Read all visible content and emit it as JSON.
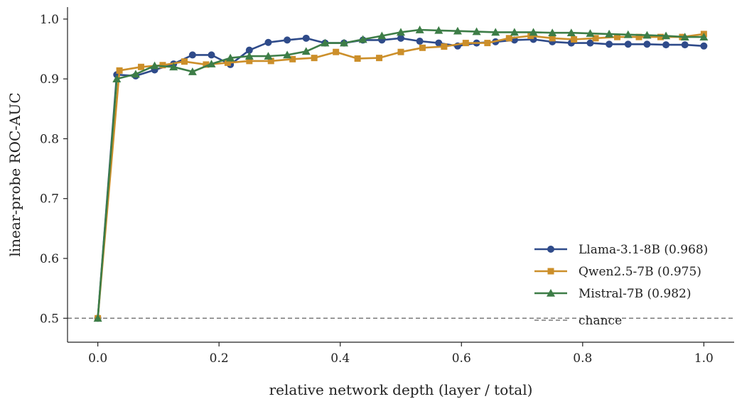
{
  "chart_data": {
    "type": "line",
    "title": "",
    "xlabel": "relative network depth (layer / total)",
    "ylabel": "linear-probe ROC-AUC",
    "xlim": [
      -0.05,
      1.05
    ],
    "ylim": [
      0.46,
      1.02
    ],
    "xticks": [
      0.0,
      0.2,
      0.4,
      0.6,
      0.8,
      1.0
    ],
    "xtick_labels": [
      "0.0",
      "0.2",
      "0.4",
      "0.6",
      "0.8",
      "1.0"
    ],
    "yticks": [
      0.5,
      0.6,
      0.7,
      0.8,
      0.9,
      1.0
    ],
    "ytick_labels": [
      "0.5",
      "0.6",
      "0.7",
      "0.8",
      "0.9",
      "1.0"
    ],
    "grid": false,
    "legend_position": "lower-right",
    "series": [
      {
        "name": "Llama-3.1-8B (0.968)",
        "color": "#2f4b8a",
        "marker": "circle",
        "x": [
          0.0,
          0.03125,
          0.0625,
          0.09375,
          0.125,
          0.15625,
          0.1875,
          0.21875,
          0.25,
          0.28125,
          0.3125,
          0.34375,
          0.375,
          0.40625,
          0.4375,
          0.46875,
          0.5,
          0.53125,
          0.5625,
          0.59375,
          0.625,
          0.65625,
          0.6875,
          0.71875,
          0.75,
          0.78125,
          0.8125,
          0.84375,
          0.875,
          0.90625,
          0.9375,
          0.96875,
          1.0
        ],
        "values": [
          0.5,
          0.907,
          0.905,
          0.915,
          0.925,
          0.94,
          0.94,
          0.924,
          0.948,
          0.961,
          0.965,
          0.968,
          0.96,
          0.96,
          0.965,
          0.965,
          0.968,
          0.963,
          0.96,
          0.955,
          0.96,
          0.962,
          0.965,
          0.966,
          0.962,
          0.96,
          0.96,
          0.958,
          0.958,
          0.958,
          0.957,
          0.957,
          0.955
        ]
      },
      {
        "name": "Qwen2.5-7B (0.975)",
        "color": "#cc8f2a",
        "marker": "square",
        "x": [
          0.0,
          0.0357,
          0.0714,
          0.1071,
          0.1429,
          0.1786,
          0.2143,
          0.25,
          0.2857,
          0.3214,
          0.3571,
          0.3929,
          0.4286,
          0.4643,
          0.5,
          0.5357,
          0.5714,
          0.6071,
          0.6429,
          0.6786,
          0.7143,
          0.75,
          0.7857,
          0.8214,
          0.8571,
          0.8929,
          0.9286,
          0.9643,
          1.0
        ],
        "values": [
          0.5,
          0.914,
          0.92,
          0.923,
          0.929,
          0.924,
          0.927,
          0.93,
          0.93,
          0.933,
          0.935,
          0.945,
          0.934,
          0.935,
          0.945,
          0.952,
          0.954,
          0.96,
          0.96,
          0.968,
          0.972,
          0.968,
          0.966,
          0.968,
          0.97,
          0.97,
          0.97,
          0.97,
          0.975
        ]
      },
      {
        "name": "Mistral-7B (0.982)",
        "color": "#3d7d47",
        "marker": "triangle",
        "x": [
          0.0,
          0.03125,
          0.0625,
          0.09375,
          0.125,
          0.15625,
          0.1875,
          0.21875,
          0.25,
          0.28125,
          0.3125,
          0.34375,
          0.375,
          0.40625,
          0.4375,
          0.46875,
          0.5,
          0.53125,
          0.5625,
          0.59375,
          0.625,
          0.65625,
          0.6875,
          0.71875,
          0.75,
          0.78125,
          0.8125,
          0.84375,
          0.875,
          0.90625,
          0.9375,
          0.96875,
          1.0
        ],
        "values": [
          0.5,
          0.9,
          0.908,
          0.922,
          0.92,
          0.912,
          0.925,
          0.935,
          0.938,
          0.938,
          0.94,
          0.946,
          0.96,
          0.96,
          0.966,
          0.972,
          0.978,
          0.982,
          0.981,
          0.98,
          0.979,
          0.978,
          0.978,
          0.978,
          0.977,
          0.977,
          0.976,
          0.975,
          0.974,
          0.973,
          0.972,
          0.97,
          0.97
        ]
      }
    ],
    "reference_line": {
      "name": "chance",
      "y": 0.5,
      "color": "#7a7a7a",
      "style": "dashed"
    }
  }
}
